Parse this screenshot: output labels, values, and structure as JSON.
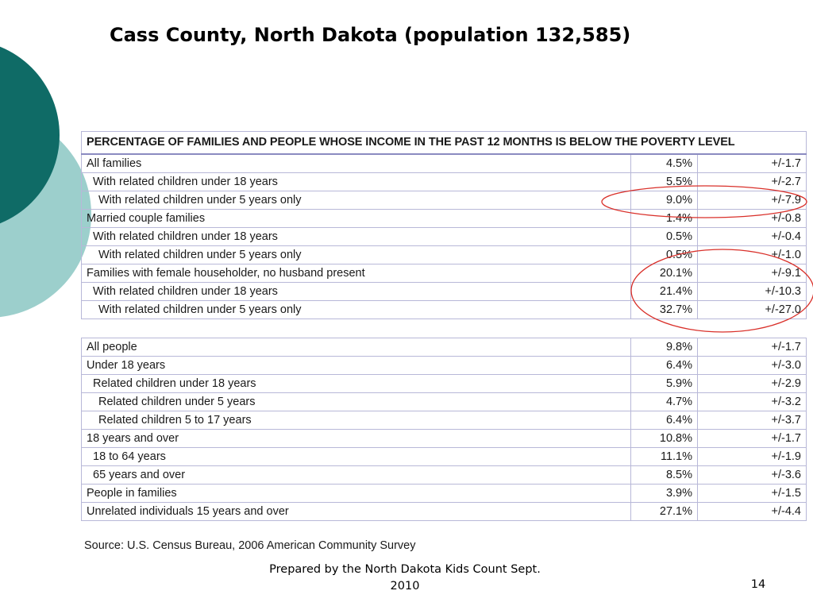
{
  "slide": {
    "title": "Cass County, North Dakota (population 132,585)",
    "footer": "Prepared by the North Dakota Kids Count Sept. 2010",
    "page_number": "14"
  },
  "table": {
    "header": "PERCENTAGE OF FAMILIES AND PEOPLE WHOSE INCOME IN THE PAST 12 MONTHS IS BELOW THE POVERTY LEVEL",
    "families": [
      {
        "label": "All families",
        "pct": "4.5%",
        "moe": "+/-1.7",
        "indent": 0
      },
      {
        "label": "With related children under 18 years",
        "pct": "5.5%",
        "moe": "+/-2.7",
        "indent": 1
      },
      {
        "label": "With related children under 5 years only",
        "pct": "9.0%",
        "moe": "+/-7.9",
        "indent": 2
      },
      {
        "label": "Married couple families",
        "pct": "1.4%",
        "moe": "+/-0.8",
        "indent": 0
      },
      {
        "label": "With related children under 18 years",
        "pct": "0.5%",
        "moe": "+/-0.4",
        "indent": 1
      },
      {
        "label": "With related children under 5 years only",
        "pct": "0.5%",
        "moe": "+/-1.0",
        "indent": 2
      },
      {
        "label": "Families with female householder, no husband present",
        "pct": "20.1%",
        "moe": "+/-9.1",
        "indent": 0
      },
      {
        "label": "With related children under 18 years",
        "pct": "21.4%",
        "moe": "+/-10.3",
        "indent": 1
      },
      {
        "label": "With related children under 5 years only",
        "pct": "32.7%",
        "moe": "+/-27.0",
        "indent": 2
      }
    ],
    "people": [
      {
        "label": "All people",
        "pct": "9.8%",
        "moe": "+/-1.7",
        "indent": 0
      },
      {
        "label": "Under 18 years",
        "pct": "6.4%",
        "moe": "+/-3.0",
        "indent": 0
      },
      {
        "label": "Related children under 18 years",
        "pct": "5.9%",
        "moe": "+/-2.9",
        "indent": 1
      },
      {
        "label": "Related children under 5 years",
        "pct": "4.7%",
        "moe": "+/-3.2",
        "indent": 2
      },
      {
        "label": "Related children 5 to 17 years",
        "pct": "6.4%",
        "moe": "+/-3.7",
        "indent": 2
      },
      {
        "label": "18 years and over",
        "pct": "10.8%",
        "moe": "+/-1.7",
        "indent": 0
      },
      {
        "label": "18 to 64 years",
        "pct": "11.1%",
        "moe": "+/-1.9",
        "indent": 1
      },
      {
        "label": "65 years and over",
        "pct": "8.5%",
        "moe": "+/-3.6",
        "indent": 1
      },
      {
        "label": "People in families",
        "pct": "3.9%",
        "moe": "+/-1.5",
        "indent": 0
      },
      {
        "label": "Unrelated individuals 15 years and over",
        "pct": "27.1%",
        "moe": "+/-4.4",
        "indent": 0
      }
    ],
    "source": "Source: U.S. Census Bureau, 2006 American Community Survey"
  },
  "colors": {
    "deco_dark": "#0f6b66",
    "deco_light": "#9ccfcc",
    "grid": "#b8b8d8",
    "highlight_circle": "#d9302a"
  }
}
